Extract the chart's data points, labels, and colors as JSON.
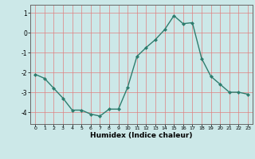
{
  "x": [
    0,
    1,
    2,
    3,
    4,
    5,
    6,
    7,
    8,
    9,
    10,
    11,
    12,
    13,
    14,
    15,
    16,
    17,
    18,
    19,
    20,
    21,
    22,
    23
  ],
  "y": [
    -2.1,
    -2.3,
    -2.8,
    -3.3,
    -3.9,
    -3.9,
    -4.1,
    -4.2,
    -3.85,
    -3.85,
    -2.75,
    -1.2,
    -0.75,
    -0.35,
    0.15,
    0.85,
    0.45,
    0.5,
    -1.3,
    -2.2,
    -2.6,
    -3.0,
    -3.0,
    -3.1
  ],
  "line_color": "#2e7d6e",
  "marker_color": "#2e7d6e",
  "bg_color": "#cce8e8",
  "grid_color": "#e08080",
  "xlabel": "Humidex (Indice chaleur)",
  "ylim": [
    -4.6,
    1.4
  ],
  "xlim": [
    -0.5,
    23.5
  ],
  "yticks": [
    -4,
    -3,
    -2,
    -1,
    0,
    1
  ],
  "xticks": [
    0,
    1,
    2,
    3,
    4,
    5,
    6,
    7,
    8,
    9,
    10,
    11,
    12,
    13,
    14,
    15,
    16,
    17,
    18,
    19,
    20,
    21,
    22,
    23
  ]
}
